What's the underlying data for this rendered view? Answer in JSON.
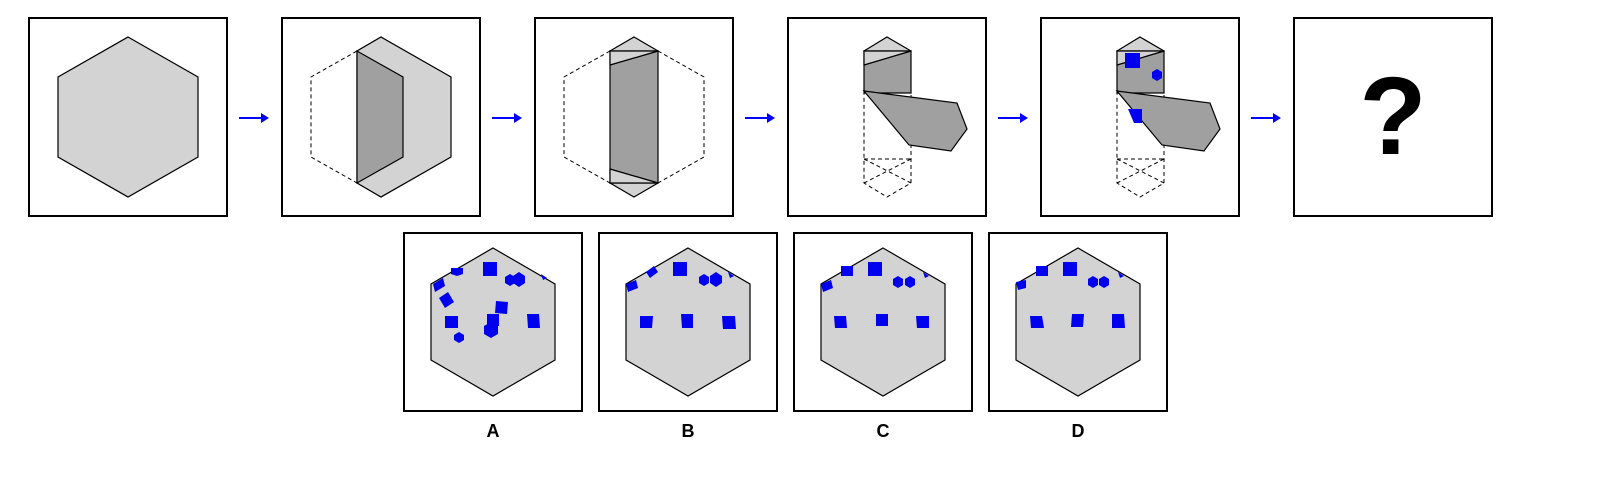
{
  "question_mark": "?",
  "options": [
    "A",
    "B",
    "C",
    "D"
  ],
  "colors": {
    "paper": "#d3d3d3",
    "fold": "#a0a0a0",
    "mark": "#0000ee",
    "arrow": "#0000ff",
    "outline": "#000000"
  }
}
